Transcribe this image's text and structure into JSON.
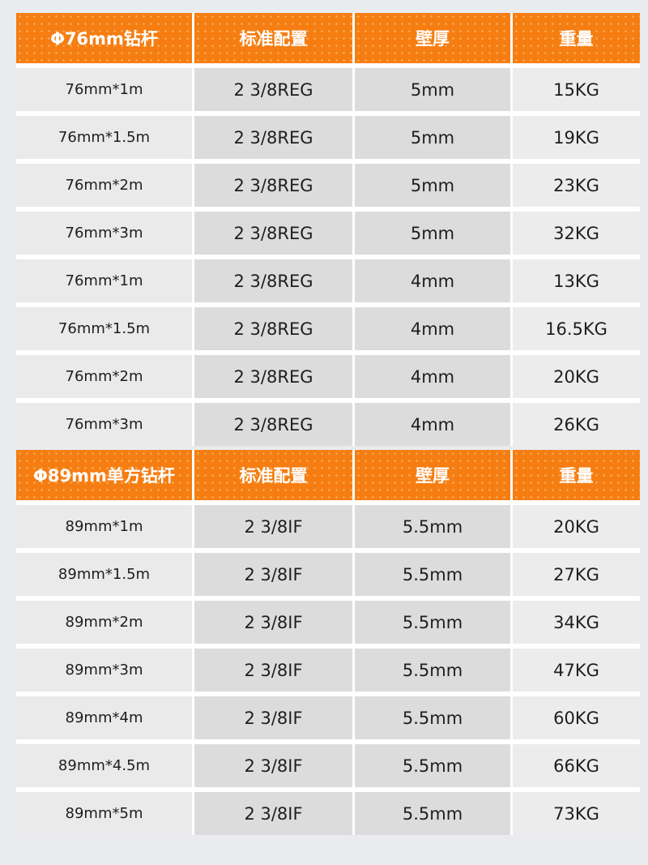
{
  "accent_color": "#f57d12",
  "tables": [
    {
      "headers": [
        "Φ76mm钻杆",
        "标准配置",
        "壁厚",
        "重量"
      ],
      "rows": [
        [
          "76mm*1m",
          "2 3/8REG",
          "5mm",
          "15KG"
        ],
        [
          "76mm*1.5m",
          "2 3/8REG",
          "5mm",
          "19KG"
        ],
        [
          "76mm*2m",
          "2 3/8REG",
          "5mm",
          "23KG"
        ],
        [
          "76mm*3m",
          "2 3/8REG",
          "5mm",
          "32KG"
        ],
        [
          "76mm*1m",
          "2 3/8REG",
          "4mm",
          "13KG"
        ],
        [
          "76mm*1.5m",
          "2 3/8REG",
          "4mm",
          "16.5KG"
        ],
        [
          "76mm*2m",
          "2 3/8REG",
          "4mm",
          "20KG"
        ],
        [
          "76mm*3m",
          "2 3/8REG",
          "4mm",
          "26KG"
        ]
      ]
    },
    {
      "headers": [
        "Φ89mm单方钻杆",
        "标准配置",
        "壁厚",
        "重量"
      ],
      "rows": [
        [
          "89mm*1m",
          "2 3/8IF",
          "5.5mm",
          "20KG"
        ],
        [
          "89mm*1.5m",
          "2 3/8IF",
          "5.5mm",
          "27KG"
        ],
        [
          "89mm*2m",
          "2 3/8IF",
          "5.5mm",
          "34KG"
        ],
        [
          "89mm*3m",
          "2 3/8IF",
          "5.5mm",
          "47KG"
        ],
        [
          "89mm*4m",
          "2 3/8IF",
          "5.5mm",
          "60KG"
        ],
        [
          "89mm*4.5m",
          "2 3/8IF",
          "5.5mm",
          "66KG"
        ],
        [
          "89mm*5m",
          "2 3/8IF",
          "5.5mm",
          "73KG"
        ]
      ]
    }
  ]
}
